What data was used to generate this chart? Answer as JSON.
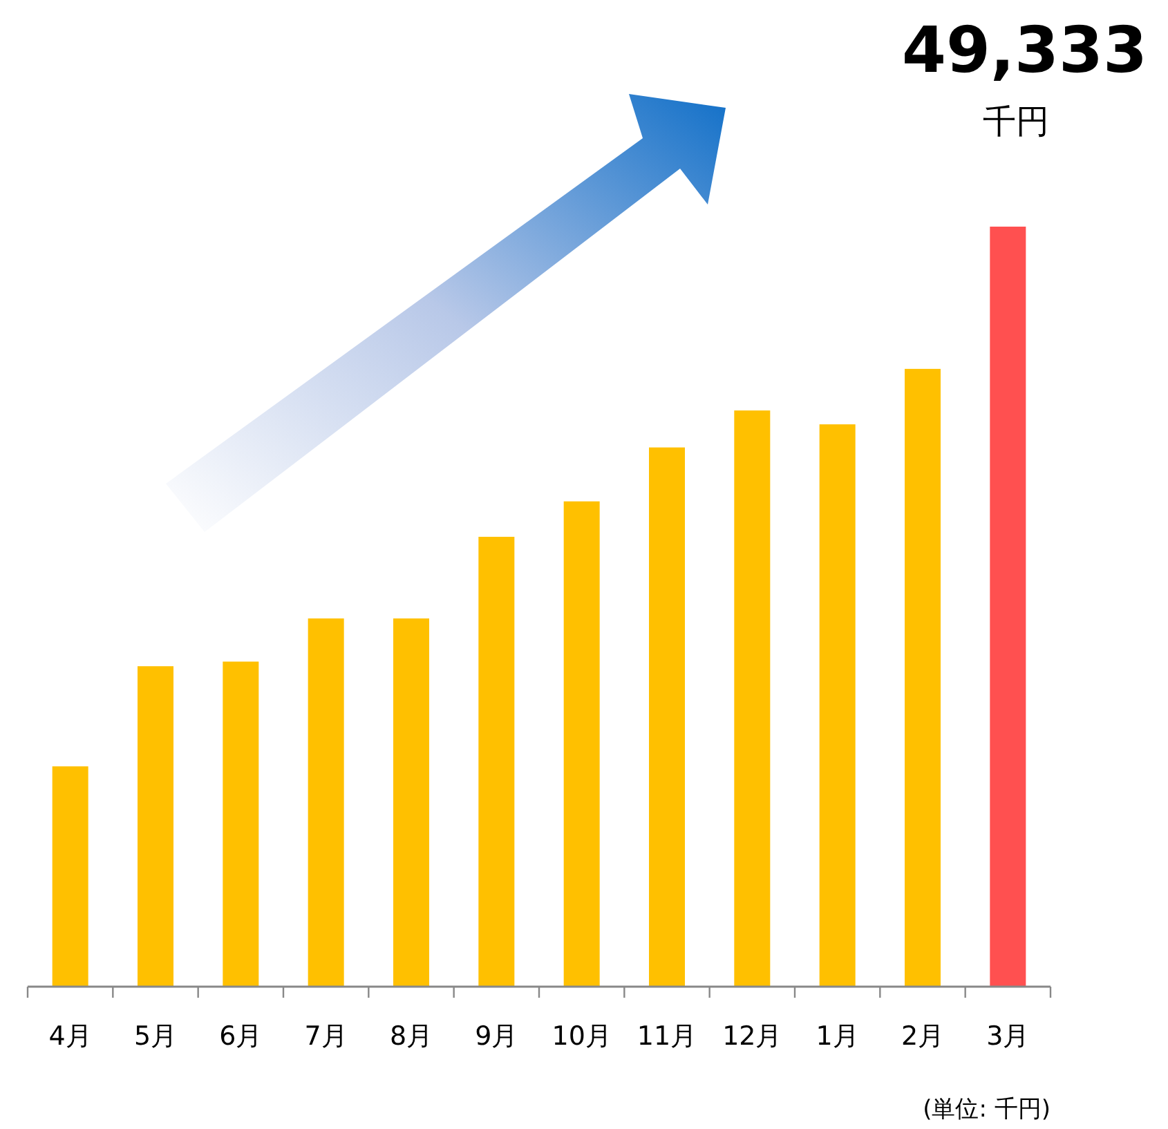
{
  "chart_data": {
    "type": "bar",
    "categories": [
      "4月",
      "5月",
      "6月",
      "7月",
      "8月",
      "9月",
      "10月",
      "11月",
      "12月",
      "1月",
      "2月",
      "3月"
    ],
    "values": [
      14300,
      20800,
      21100,
      23900,
      23900,
      29200,
      31500,
      35000,
      37400,
      36500,
      40100,
      49333
    ],
    "colors": [
      "#ffc000",
      "#ffc000",
      "#ffc000",
      "#ffc000",
      "#ffc000",
      "#ffc000",
      "#ffc000",
      "#ffc000",
      "#ffc000",
      "#ffc000",
      "#ffc000",
      "#ff5050"
    ],
    "value_labels": [
      null,
      null,
      null,
      null,
      null,
      null,
      null,
      null,
      null,
      null,
      null,
      "49,333"
    ],
    "annotations": [
      "千円",
      "(単位:  千円)"
    ]
  }
}
